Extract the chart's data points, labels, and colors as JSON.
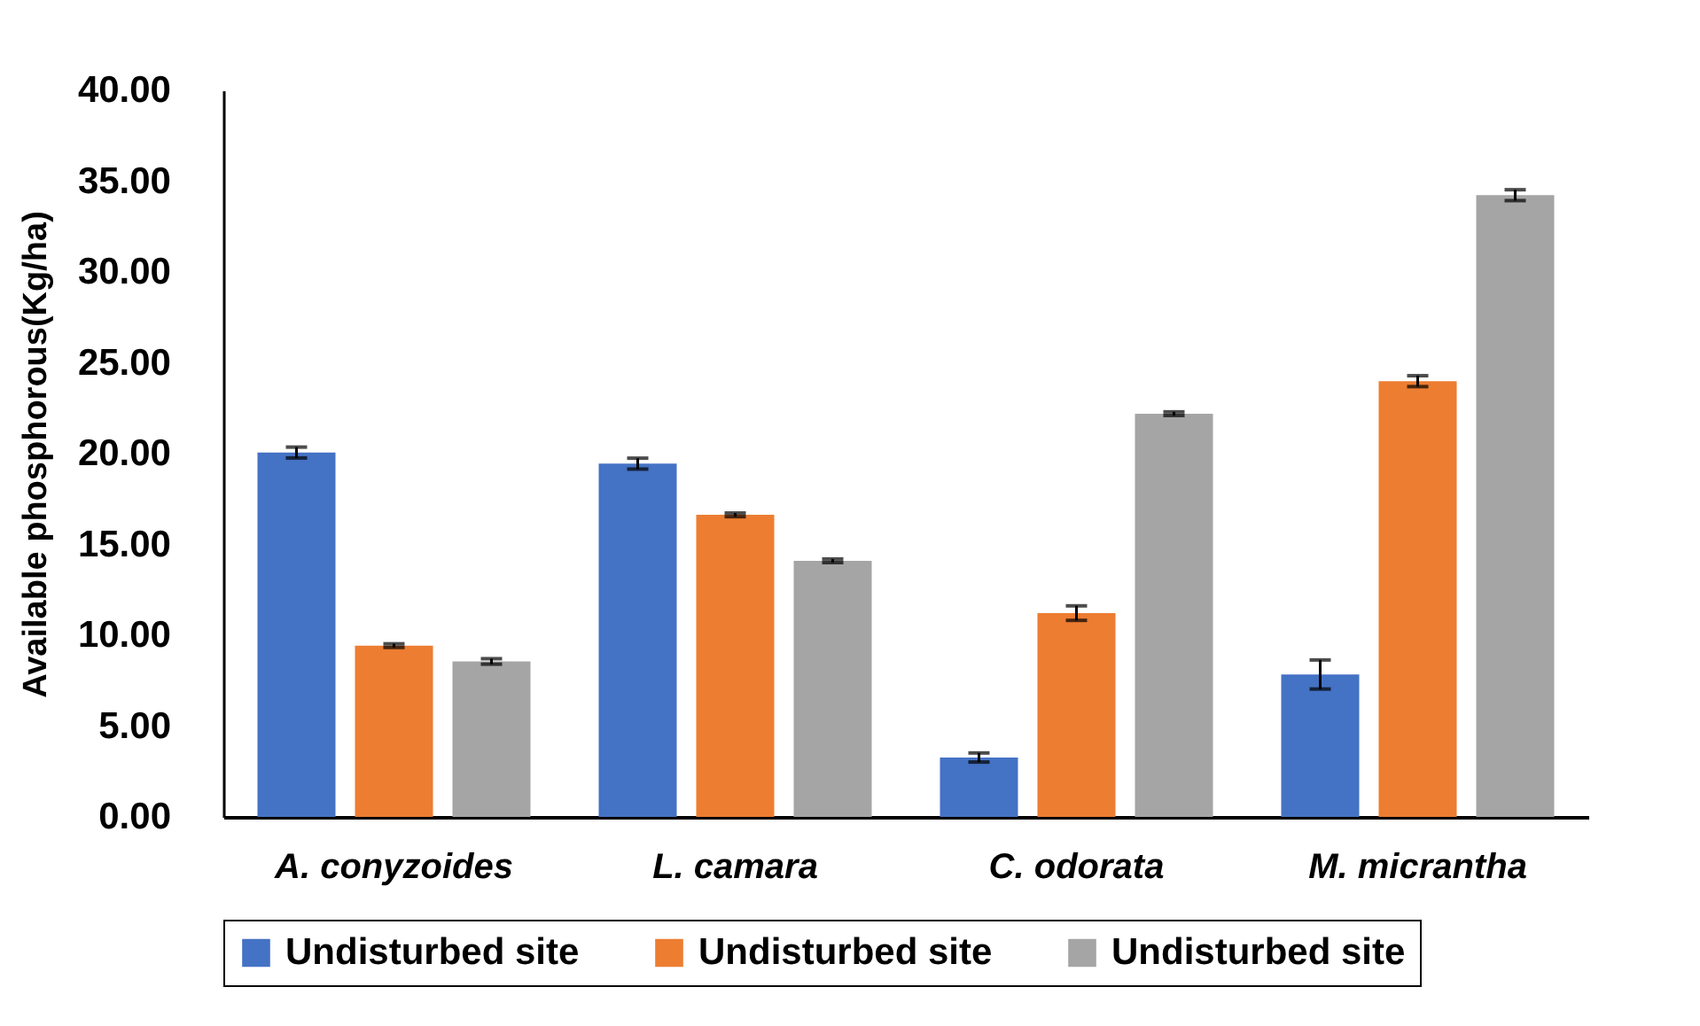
{
  "chart_data": {
    "type": "bar",
    "ylabel": "Available phosphorous(Kg/ha)",
    "categories": [
      "A. conyzoides",
      "L. camara",
      "C. odorata",
      "M. micrantha"
    ],
    "series": [
      {
        "name": "Undisturbed site",
        "color": "#4472c4",
        "values": [
          20.06,
          19.45,
          3.27,
          7.84
        ],
        "errors": [
          0.3,
          0.3,
          0.25,
          0.8
        ]
      },
      {
        "name": "Undisturbed site",
        "color": "#ed7d31",
        "values": [
          9.43,
          16.63,
          11.22,
          23.99
        ],
        "errors": [
          0.1,
          0.1,
          0.4,
          0.3
        ]
      },
      {
        "name": "Undisturbed site",
        "color": "#a5a5a5",
        "values": [
          8.56,
          14.1,
          22.2,
          34.23
        ],
        "errors": [
          0.15,
          0.1,
          0.1,
          0.3
        ]
      }
    ],
    "ylim": [
      0,
      40
    ],
    "yticks": [
      {
        "value": 0,
        "label": "0.00"
      },
      {
        "value": 5,
        "label": "5.00"
      },
      {
        "value": 10,
        "label": "10.00"
      },
      {
        "value": 15,
        "label": "15.00"
      },
      {
        "value": 20,
        "label": "20.00"
      },
      {
        "value": 25,
        "label": "25.00"
      },
      {
        "value": 30,
        "label": "30.00"
      },
      {
        "value": 35,
        "label": "35.00"
      },
      {
        "value": 40,
        "label": "40.00"
      }
    ],
    "grid": false,
    "legend": "bottom"
  }
}
